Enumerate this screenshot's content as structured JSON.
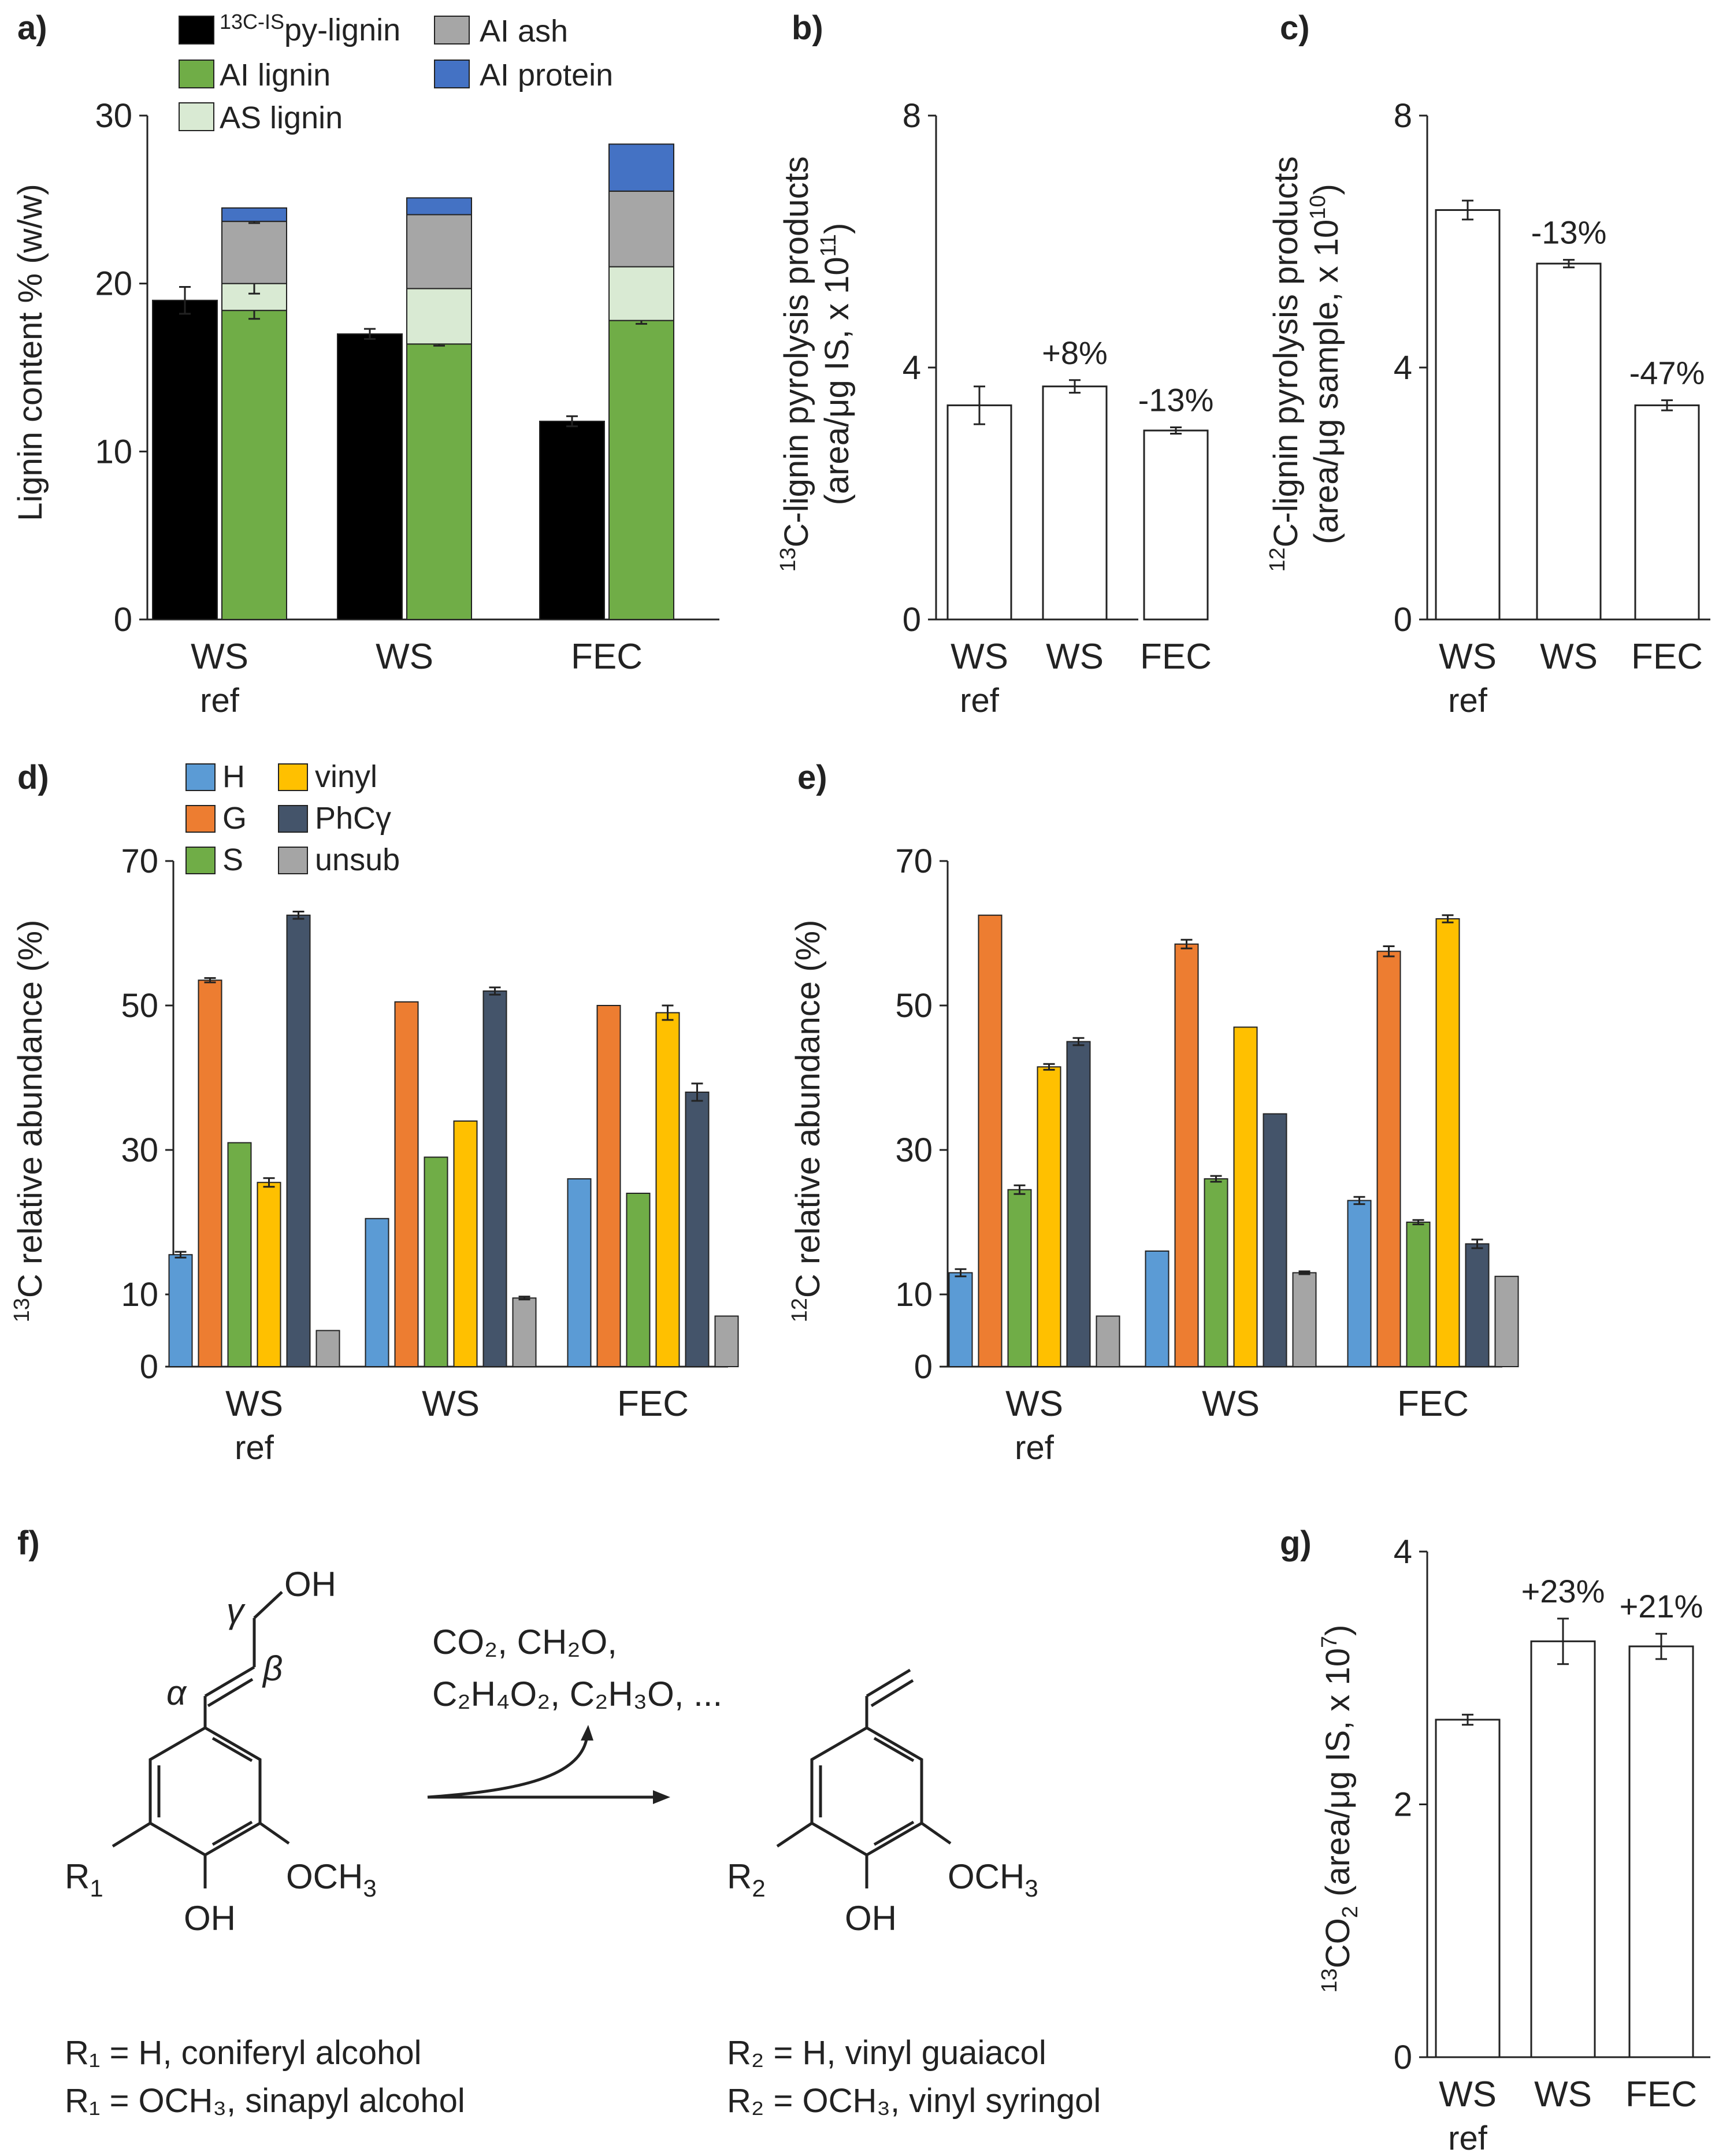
{
  "chart_data": [
    {
      "panel": "a)",
      "type": "bar",
      "ylabel": "Lignin content % (w/w)",
      "ylim": [
        0,
        30
      ],
      "yticks": [
        "0",
        "10",
        "20",
        "30"
      ],
      "groups": [
        {
          "label": "WS",
          "sub": "ref"
        },
        {
          "label": "WS",
          "sub": ""
        },
        {
          "label": "FEC",
          "sub": ""
        }
      ],
      "legend": [
        {
          "key": "isp",
          "pre": "13C-IS",
          "main": "py-lignin",
          "color": "#000000"
        },
        {
          "key": "ash",
          "label": "AI ash",
          "color": "#a6a6a6"
        },
        {
          "key": "ail",
          "label": "AI lignin",
          "color": "#70ad47"
        },
        {
          "key": "prot",
          "label": "AI protein",
          "color": "#4472c4"
        },
        {
          "key": "asl",
          "label": "AS lignin",
          "color": "#d9ead3"
        }
      ],
      "py_lignin": [
        19.0,
        17.0,
        11.8
      ],
      "py_lignin_err": [
        0.8,
        0.3,
        0.3
      ],
      "stack_series": [
        {
          "key": "ail",
          "name": "AI lignin",
          "color": "#70ad47",
          "values": [
            18.4,
            16.4,
            17.8
          ],
          "err": [
            0.5,
            0.1,
            0.2
          ]
        },
        {
          "key": "asl",
          "name": "AS lignin",
          "color": "#d9ead3",
          "values": [
            1.6,
            3.3,
            3.2
          ],
          "err": [
            0.6,
            0,
            0
          ]
        },
        {
          "key": "ash",
          "name": "AI ash",
          "color": "#a6a6a6",
          "values": [
            3.7,
            4.4,
            4.5
          ],
          "err": [
            0.1,
            0,
            0
          ]
        },
        {
          "key": "prot",
          "name": "AI protein",
          "color": "#4472c4",
          "values": [
            0.8,
            1.0,
            2.8
          ],
          "err": [
            0,
            0,
            0
          ]
        }
      ]
    },
    {
      "panel": "b)",
      "type": "bar",
      "ylabel_pre": "13",
      "ylabel_main": "C-lignin pyrolysis products",
      "ylabel2_main": "(area/μg IS, x 10",
      "ylabel2_sup": "11",
      "ylabel2_end": ")",
      "ylim": [
        0,
        8
      ],
      "yticks": [
        "0",
        "4",
        "8"
      ],
      "groups": [
        {
          "label": "WS",
          "sub": "ref"
        },
        {
          "label": "WS",
          "sub": ""
        },
        {
          "label": "FEC",
          "sub": ""
        }
      ],
      "values": [
        3.4,
        3.7,
        3.0
      ],
      "err": [
        0.3,
        0.1,
        0.05
      ],
      "annotations": [
        "",
        "+8%",
        "-13%"
      ]
    },
    {
      "panel": "c)",
      "type": "bar",
      "ylabel_pre": "12",
      "ylabel_main": "C-lignin pyrolysis products",
      "ylabel2_main": "(area/μg sample, x 10",
      "ylabel2_sup": "10",
      "ylabel2_end": ")",
      "ylim": [
        0,
        8
      ],
      "yticks": [
        "0",
        "4",
        "8"
      ],
      "groups": [
        {
          "label": "WS",
          "sub": "ref"
        },
        {
          "label": "WS",
          "sub": ""
        },
        {
          "label": "FEC",
          "sub": ""
        }
      ],
      "values": [
        6.5,
        5.65,
        3.4
      ],
      "err": [
        0.15,
        0.06,
        0.08
      ],
      "annotations": [
        "",
        "-13%",
        "-47%"
      ]
    },
    {
      "panel": "d)",
      "type": "bar",
      "ylabel_pre": "13",
      "ylabel_main": "C relative abundance (%)",
      "ylim": [
        0,
        70
      ],
      "yticks": [
        "0",
        "10",
        "30",
        "50",
        "70"
      ],
      "groups": [
        {
          "label": "WS",
          "sub": "ref"
        },
        {
          "label": "WS",
          "sub": ""
        },
        {
          "label": "FEC",
          "sub": ""
        }
      ],
      "legend": [
        {
          "label": "H",
          "color": "#5b9bd5"
        },
        {
          "label": "vinyl",
          "color": "#ffc000"
        },
        {
          "label": "G",
          "color": "#ed7d31"
        },
        {
          "label": "PhCγ",
          "color": "#44546a"
        },
        {
          "label": "S",
          "color": "#70ad47"
        },
        {
          "label": "unsub",
          "color": "#a5a5a5"
        }
      ],
      "series": [
        {
          "name": "H",
          "color": "#5b9bd5",
          "values": [
            15.5,
            20.5,
            26.0
          ],
          "err": [
            0.4,
            0,
            0
          ]
        },
        {
          "name": "G",
          "color": "#ed7d31",
          "values": [
            53.5,
            50.5,
            50.0
          ],
          "err": [
            0.3,
            0,
            0
          ]
        },
        {
          "name": "S",
          "color": "#70ad47",
          "values": [
            31.0,
            29.0,
            24.0
          ],
          "err": [
            0,
            0,
            0
          ]
        },
        {
          "name": "vinyl",
          "color": "#ffc000",
          "values": [
            25.5,
            34.0,
            49.0
          ],
          "err": [
            0.6,
            0,
            1.0
          ]
        },
        {
          "name": "PhCγ",
          "color": "#44546a",
          "values": [
            62.5,
            52.0,
            38.0
          ],
          "err": [
            0.5,
            0.5,
            1.2
          ]
        },
        {
          "name": "unsub",
          "color": "#a5a5a5",
          "values": [
            5.0,
            9.5,
            7.0
          ],
          "err": [
            0,
            0.2,
            0
          ]
        }
      ]
    },
    {
      "panel": "e)",
      "type": "bar",
      "ylabel_pre": "12",
      "ylabel_main": "C relative abundance (%)",
      "ylim": [
        0,
        70
      ],
      "yticks": [
        "0",
        "10",
        "30",
        "50",
        "70"
      ],
      "groups": [
        {
          "label": "WS",
          "sub": "ref"
        },
        {
          "label": "WS",
          "sub": ""
        },
        {
          "label": "FEC",
          "sub": ""
        }
      ],
      "series": [
        {
          "name": "H",
          "color": "#5b9bd5",
          "values": [
            13.0,
            16.0,
            23.0
          ],
          "err": [
            0.5,
            0,
            0.5
          ]
        },
        {
          "name": "G",
          "color": "#ed7d31",
          "values": [
            62.5,
            58.5,
            57.5
          ],
          "err": [
            0,
            0.6,
            0.7
          ]
        },
        {
          "name": "S",
          "color": "#70ad47",
          "values": [
            24.5,
            26.0,
            20.0
          ],
          "err": [
            0.6,
            0.4,
            0.3
          ]
        },
        {
          "name": "vinyl",
          "color": "#ffc000",
          "values": [
            41.5,
            47.0,
            62.0
          ],
          "err": [
            0.4,
            0,
            0.5
          ]
        },
        {
          "name": "PhCγ",
          "color": "#44546a",
          "values": [
            45.0,
            35.0,
            17.0
          ],
          "err": [
            0.5,
            0,
            0.6
          ]
        },
        {
          "name": "unsub",
          "color": "#a5a5a5",
          "values": [
            7.0,
            13.0,
            12.5
          ],
          "err": [
            0,
            0.2,
            0
          ]
        }
      ]
    },
    {
      "panel": "g)",
      "type": "bar",
      "ylabel_pre": "13",
      "ylabel_mid": "CO",
      "ylabel_sub": "2",
      "ylabel_main": " (area/μg IS, x 10",
      "ylabel_sup": "7",
      "ylabel_end": ")",
      "ylim": [
        0,
        4
      ],
      "yticks": [
        "0",
        "2",
        "4"
      ],
      "groups": [
        {
          "label": "WS",
          "sub": "ref"
        },
        {
          "label": "WS",
          "sub": ""
        },
        {
          "label": "FEC",
          "sub": ""
        }
      ],
      "values": [
        2.67,
        3.29,
        3.25
      ],
      "err": [
        0.04,
        0.18,
        0.1
      ],
      "annotations": [
        "",
        "+23%",
        "+21%"
      ]
    }
  ],
  "scheme": {
    "panel": "f)",
    "oh": "OH",
    "gamma": "γ",
    "alpha": "α",
    "beta": "β",
    "r1": "R",
    "r1_sub": "1",
    "r2": "R",
    "r2_sub": "2",
    "och3": "OCH",
    "och3_sub": "3",
    "products_line1": "CO₂, CH₂O,",
    "products_line2": "C₂H₄O₂, C₂H₃O, ...",
    "note_left_1": "R₁ = H, coniferyl alcohol",
    "note_left_2": "R₁ = OCH₃, sinapyl alcohol",
    "note_right_1": "R₂ = H, vinyl guaiacol",
    "note_right_2": "R₂ = OCH₃, vinyl syringol"
  }
}
